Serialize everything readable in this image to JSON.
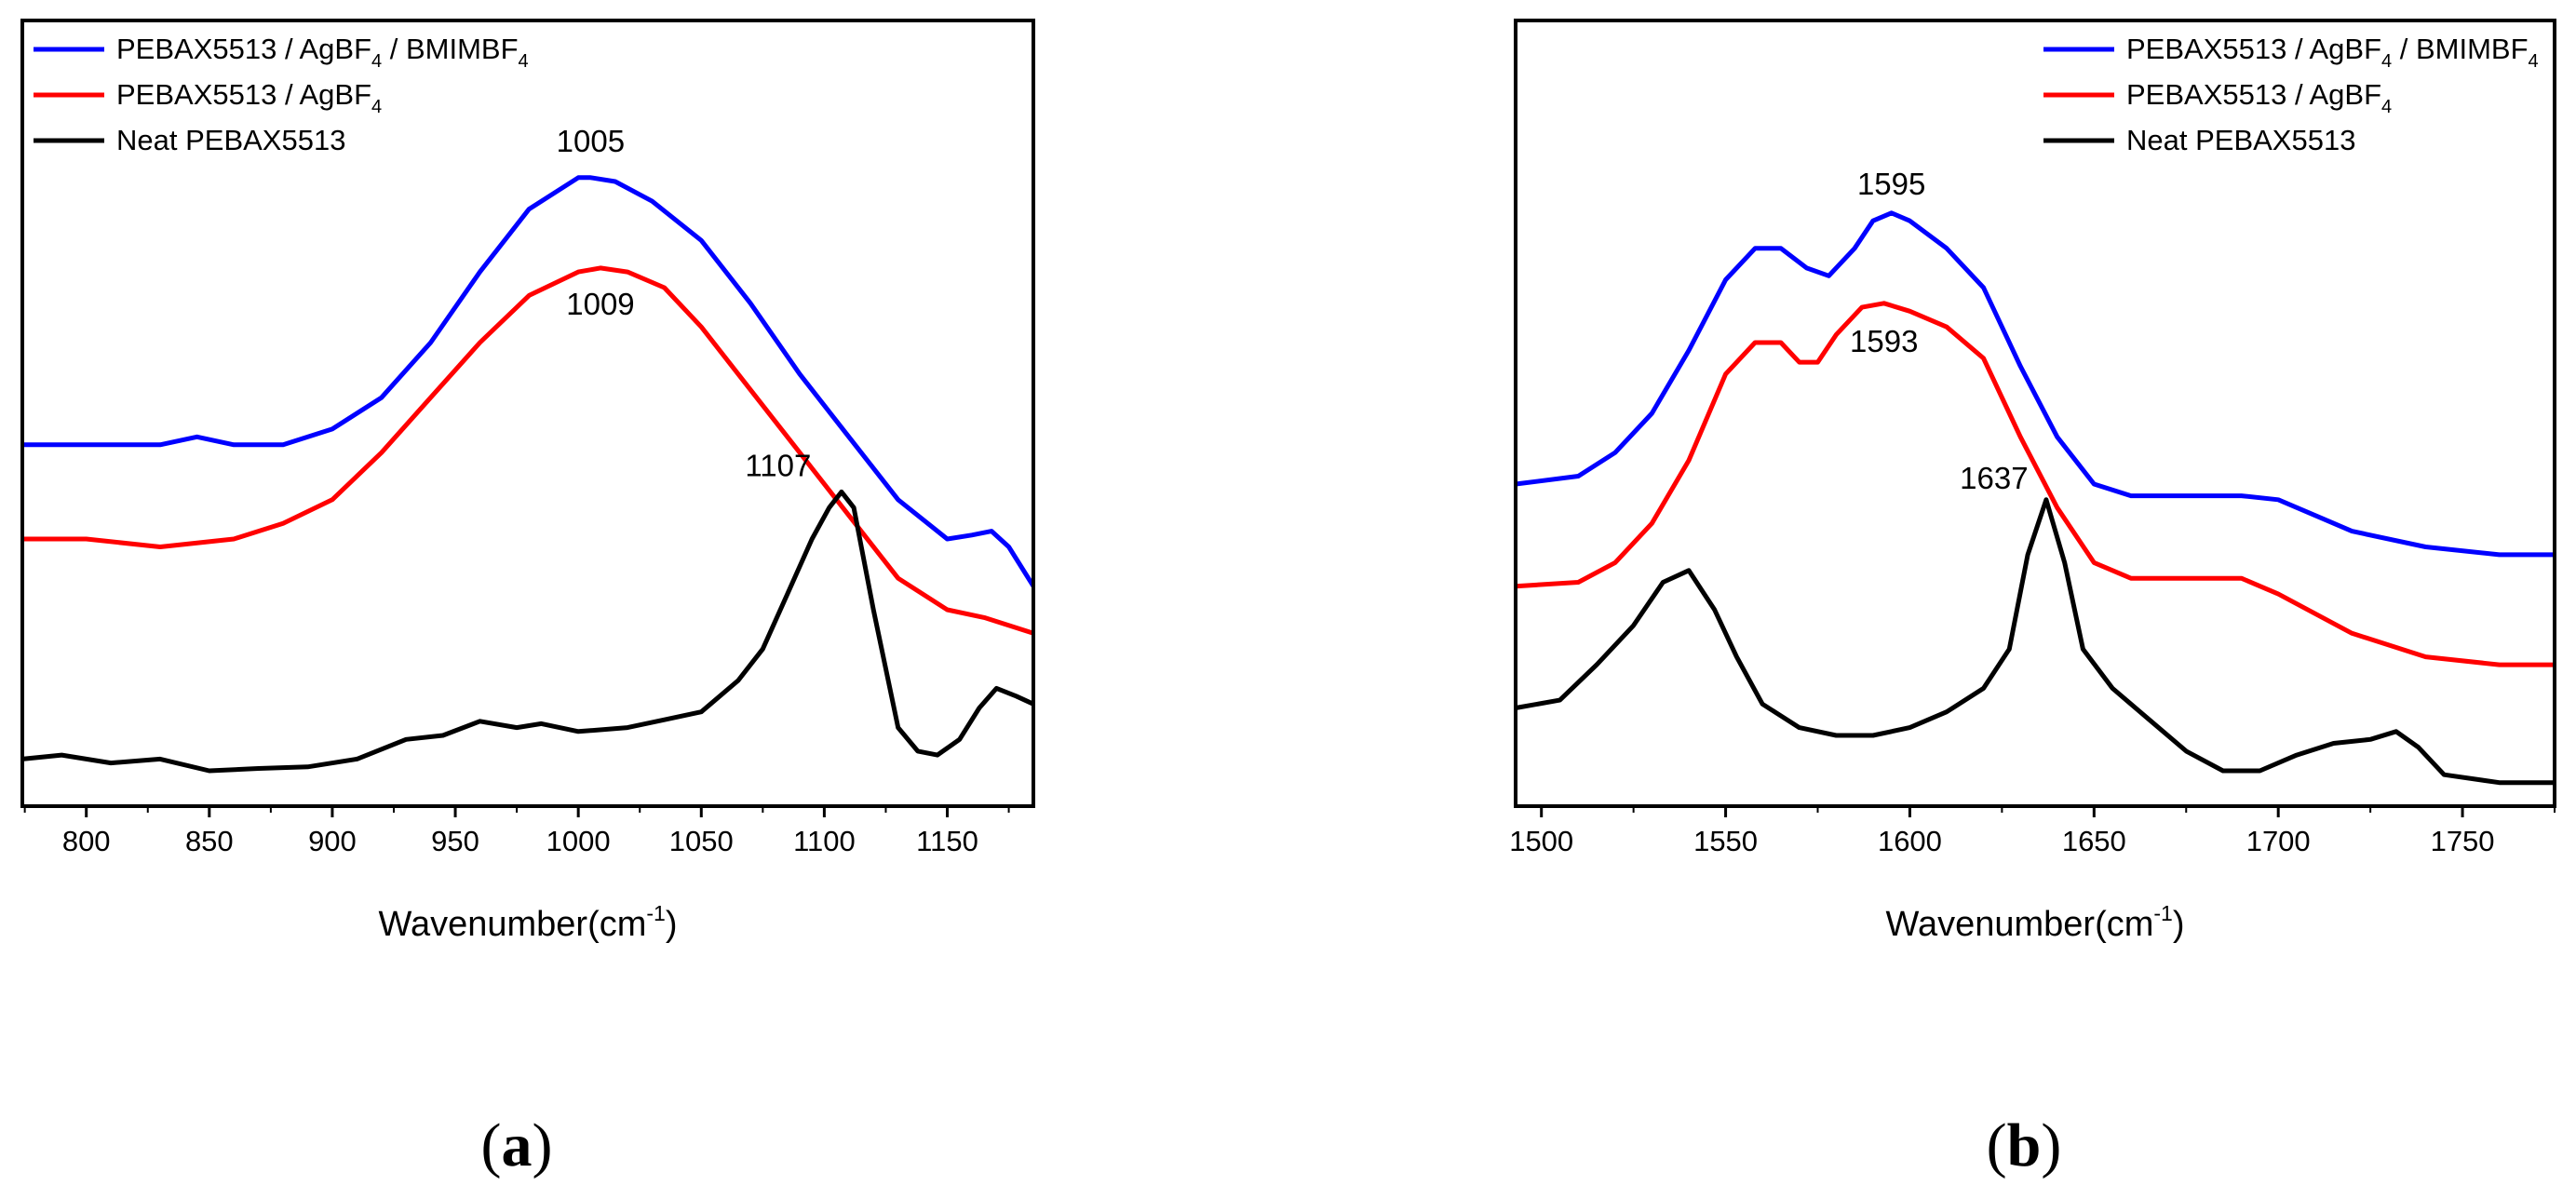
{
  "chart_data": [
    {
      "type": "line",
      "panel_label": "a",
      "xlabel": "Wavenumber(cm",
      "xlabel_sup": "-1",
      "xlabel_tail": ")",
      "xlim": [
        774,
        1185
      ],
      "ylim": [
        0,
        100
      ],
      "xticks": [
        800,
        850,
        900,
        950,
        1000,
        1050,
        1100,
        1150
      ],
      "legend": [
        {
          "label": "PEBAX5513 / AgBF",
          "sub": "4",
          "tail": " / BMIMBF",
          "sub2": "4",
          "color": "#0000ff"
        },
        {
          "label": "PEBAX5513 / AgBF",
          "sub": "4",
          "tail": "",
          "sub2": "",
          "color": "#ff0000"
        },
        {
          "label": "Neat PEBAX5513",
          "sub": "",
          "tail": "",
          "sub2": "",
          "color": "#000000"
        }
      ],
      "series": [
        {
          "name": "PEBAX5513 / AgBF4 / BMIMBF4",
          "color": "#0000ff",
          "x": [
            774,
            800,
            830,
            845,
            860,
            880,
            900,
            920,
            940,
            960,
            980,
            1000,
            1005,
            1015,
            1030,
            1050,
            1070,
            1090,
            1110,
            1130,
            1150,
            1160,
            1168,
            1175,
            1185
          ],
          "y": [
            46,
            46,
            46,
            47,
            46,
            46,
            48,
            52,
            59,
            68,
            76,
            80,
            80,
            79.5,
            77,
            72,
            64,
            55,
            47,
            39,
            34,
            34.5,
            35,
            33,
            28
          ]
        },
        {
          "name": "PEBAX5513 / AgBF4",
          "color": "#ff0000",
          "x": [
            774,
            800,
            830,
            860,
            880,
            900,
            920,
            940,
            960,
            980,
            1000,
            1009,
            1020,
            1035,
            1050,
            1070,
            1090,
            1110,
            1130,
            1150,
            1165,
            1185
          ],
          "y": [
            34,
            34,
            33,
            34,
            36,
            39,
            45,
            52,
            59,
            65,
            68,
            68.5,
            68,
            66,
            61,
            53,
            45,
            37,
            29,
            25,
            24,
            22
          ]
        },
        {
          "name": "Neat PEBAX5513",
          "color": "#000000",
          "x": [
            774,
            790,
            810,
            830,
            850,
            870,
            890,
            910,
            930,
            945,
            960,
            975,
            985,
            1000,
            1020,
            1035,
            1050,
            1065,
            1075,
            1085,
            1095,
            1102,
            1107,
            1112,
            1120,
            1130,
            1138,
            1146,
            1155,
            1163,
            1170,
            1178,
            1185
          ],
          "y": [
            6,
            6.5,
            5.5,
            6,
            4.5,
            4.8,
            5,
            6,
            8.5,
            9,
            10.8,
            10,
            10.5,
            9.5,
            10,
            11,
            12,
            16,
            20,
            27,
            34,
            38,
            40,
            38,
            25,
            10,
            7,
            6.5,
            8.5,
            12.5,
            15,
            14,
            13
          ]
        }
      ],
      "annotations": [
        {
          "text": "1005",
          "x": 1005,
          "y": 80
        },
        {
          "text": "1009",
          "x": 1009,
          "y": 68.5
        },
        {
          "text": "1107",
          "x": 1107,
          "y": 40
        }
      ]
    },
    {
      "type": "line",
      "panel_label": "b",
      "xlabel": "Wavenumber(cm",
      "xlabel_sup": "-1",
      "xlabel_tail": ")",
      "xlim": [
        1493,
        1775
      ],
      "ylim": [
        0,
        100
      ],
      "xticks": [
        1500,
        1550,
        1600,
        1650,
        1700,
        1750
      ],
      "legend": [
        {
          "label": "PEBAX5513 / AgBF",
          "sub": "4",
          "tail": " / BMIMBF",
          "sub2": "4",
          "color": "#0000ff"
        },
        {
          "label": "PEBAX5513 / AgBF",
          "sub": "4",
          "tail": "",
          "sub2": "",
          "color": "#ff0000"
        },
        {
          "label": "Neat PEBAX5513",
          "sub": "",
          "tail": "",
          "sub2": "",
          "color": "#000000"
        }
      ],
      "series": [
        {
          "name": "PEBAX5513 / AgBF4 / BMIMBF4",
          "color": "#0000ff",
          "x": [
            1493,
            1510,
            1520,
            1530,
            1540,
            1550,
            1558,
            1565,
            1572,
            1578,
            1585,
            1590,
            1595,
            1600,
            1610,
            1620,
            1630,
            1640,
            1650,
            1660,
            1680,
            1690,
            1700,
            1710,
            1720,
            1740,
            1760,
            1775
          ],
          "y": [
            41,
            42,
            45,
            50,
            58,
            67,
            71,
            71,
            68.5,
            67.5,
            71,
            74.5,
            75.5,
            74.5,
            71,
            66,
            56,
            47,
            41,
            39.5,
            39.5,
            39.5,
            39,
            37,
            35,
            33,
            32,
            32
          ]
        },
        {
          "name": "PEBAX5513 / AgBF4",
          "color": "#ff0000",
          "x": [
            1493,
            1510,
            1520,
            1530,
            1540,
            1550,
            1558,
            1565,
            1570,
            1575,
            1580,
            1587,
            1593,
            1600,
            1610,
            1620,
            1630,
            1640,
            1650,
            1660,
            1680,
            1690,
            1700,
            1720,
            1740,
            1760,
            1775
          ],
          "y": [
            28,
            28.5,
            31,
            36,
            44,
            55,
            59,
            59,
            56.5,
            56.5,
            60,
            63.5,
            64,
            63,
            61,
            57,
            47,
            38,
            31,
            29,
            29,
            29,
            27,
            22,
            19,
            18,
            18
          ]
        },
        {
          "name": "Neat PEBAX5513",
          "color": "#000000",
          "x": [
            1493,
            1505,
            1515,
            1525,
            1533,
            1540,
            1547,
            1553,
            1560,
            1570,
            1580,
            1590,
            1600,
            1610,
            1620,
            1627,
            1632,
            1637,
            1642,
            1647,
            1655,
            1665,
            1675,
            1685,
            1695,
            1705,
            1715,
            1725,
            1732,
            1738,
            1745,
            1760,
            1775
          ],
          "y": [
            12.5,
            13.5,
            18,
            23,
            28.5,
            30,
            25,
            19,
            13,
            10,
            9,
            9,
            10,
            12,
            15,
            20,
            32,
            39,
            31,
            20,
            15,
            11,
            7,
            4.5,
            4.5,
            6.5,
            8,
            8.5,
            9.5,
            7.5,
            4,
            3,
            3
          ]
        }
      ],
      "annotations": [
        {
          "text": "1595",
          "x": 1595,
          "y": 75.5
        },
        {
          "text": "1593",
          "x": 1593,
          "y": 64
        },
        {
          "text": "1637",
          "x": 1637,
          "y": 39
        }
      ]
    }
  ]
}
